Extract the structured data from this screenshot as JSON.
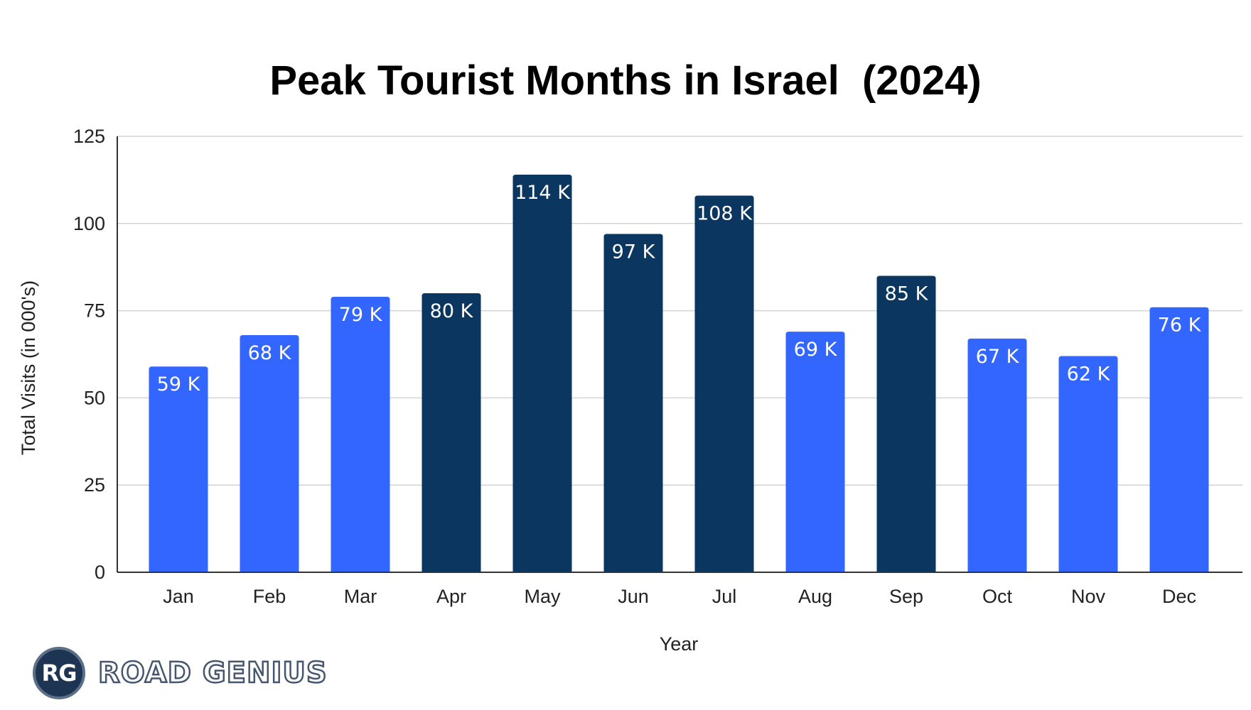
{
  "chart_data": {
    "type": "bar",
    "title": "Peak Tourist Months in Israel  (2024)",
    "xlabel": "Year",
    "ylabel": "Total Visits (in 000's)",
    "ylim": [
      0,
      125
    ],
    "yticks": [
      0,
      25,
      50,
      75,
      100,
      125
    ],
    "grid": true,
    "categories": [
      "Jan",
      "Feb",
      "Mar",
      "Apr",
      "May",
      "Jun",
      "Jul",
      "Aug",
      "Sep",
      "Oct",
      "Nov",
      "Dec"
    ],
    "values": [
      59,
      68,
      79,
      80,
      114,
      97,
      108,
      69,
      85,
      67,
      62,
      76
    ],
    "data_labels": [
      "59 K",
      "68 K",
      "79 K",
      "80 K",
      "114 K",
      "97 K",
      "108 K",
      "69 K",
      "85 K",
      "67 K",
      "62 K",
      "76 K"
    ],
    "highlighted": [
      false,
      false,
      false,
      true,
      true,
      true,
      true,
      false,
      true,
      false,
      false,
      false
    ],
    "colors": {
      "normal": "#3366ff",
      "highlight": "#0a365f",
      "grid": "#d4d4d4",
      "axis": "#333333"
    }
  },
  "logo": {
    "badge_text": "RG",
    "name": "ROAD GENIUS"
  }
}
